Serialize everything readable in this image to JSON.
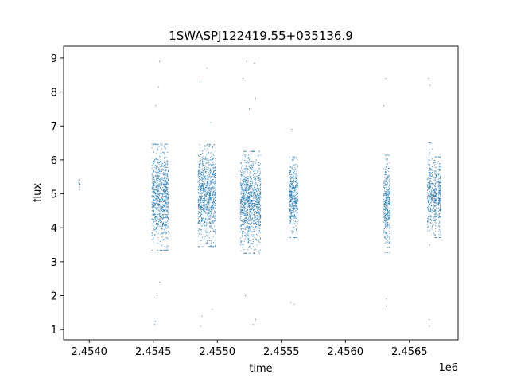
{
  "chart_data": {
    "type": "scatter",
    "title": "1SWASPJ122419.55+035136.9",
    "xlabel": "time",
    "ylabel": "flux",
    "x_offset_label": "1e6",
    "xlim": [
      2453800,
      2456880
    ],
    "ylim": [
      0.7,
      9.35
    ],
    "x_ticks": [
      2454000,
      2454500,
      2455000,
      2455500,
      2456000,
      2456500
    ],
    "x_tick_labels": [
      "2.4540",
      "2.4545",
      "2.4550",
      "2.4555",
      "2.4560",
      "2.4565"
    ],
    "y_ticks": [
      1,
      2,
      3,
      4,
      5,
      6,
      7,
      8,
      9
    ],
    "y_tick_labels": [
      "1",
      "2",
      "3",
      "4",
      "5",
      "6",
      "7",
      "8",
      "9"
    ],
    "grid": false,
    "marker_color": "#1f77b4",
    "series": [
      {
        "clusters": [
          {
            "x_start": 2453918,
            "x_end": 2453922,
            "y_center": 5.35,
            "y_spread": 0.25,
            "count": 8
          },
          {
            "x_start": 2454490,
            "x_end": 2454620,
            "y_center": 4.9,
            "y_spread": 1.25,
            "count": 900
          },
          {
            "x_start": 2454850,
            "x_end": 2454990,
            "y_center": 4.95,
            "y_spread": 1.2,
            "count": 950
          },
          {
            "x_start": 2455180,
            "x_end": 2455340,
            "y_center": 4.75,
            "y_spread": 1.2,
            "count": 1100
          },
          {
            "x_start": 2455560,
            "x_end": 2455630,
            "y_center": 4.9,
            "y_spread": 0.95,
            "count": 450
          },
          {
            "x_start": 2456300,
            "x_end": 2456350,
            "y_center": 4.7,
            "y_spread": 1.15,
            "count": 380
          },
          {
            "x_start": 2456640,
            "x_end": 2456680,
            "y_center": 5.0,
            "y_spread": 1.2,
            "count": 220
          },
          {
            "x_start": 2456690,
            "x_end": 2456712,
            "y_center": 4.9,
            "y_spread": 0.95,
            "count": 170
          },
          {
            "x_start": 2456725,
            "x_end": 2456745,
            "y_center": 4.9,
            "y_spread": 0.95,
            "count": 170
          }
        ],
        "outliers": [
          {
            "x": 2454548,
            "y": 8.9
          },
          {
            "x": 2454540,
            "y": 8.15
          },
          {
            "x": 2454520,
            "y": 7.6
          },
          {
            "x": 2454512,
            "y": 1.15
          },
          {
            "x": 2454515,
            "y": 1.25
          },
          {
            "x": 2454530,
            "y": 2.0
          },
          {
            "x": 2454550,
            "y": 2.4
          },
          {
            "x": 2454865,
            "y": 8.3
          },
          {
            "x": 2454920,
            "y": 8.7
          },
          {
            "x": 2454950,
            "y": 7.1
          },
          {
            "x": 2454870,
            "y": 1.1
          },
          {
            "x": 2454880,
            "y": 1.4
          },
          {
            "x": 2454960,
            "y": 1.6
          },
          {
            "x": 2455200,
            "y": 8.4
          },
          {
            "x": 2455230,
            "y": 8.9
          },
          {
            "x": 2455290,
            "y": 8.85
          },
          {
            "x": 2455300,
            "y": 7.8
          },
          {
            "x": 2455250,
            "y": 7.5
          },
          {
            "x": 2455280,
            "y": 1.15
          },
          {
            "x": 2455300,
            "y": 1.3
          },
          {
            "x": 2455220,
            "y": 2.0
          },
          {
            "x": 2455582,
            "y": 6.9
          },
          {
            "x": 2455575,
            "y": 1.8
          },
          {
            "x": 2455600,
            "y": 1.75
          },
          {
            "x": 2456316,
            "y": 8.4
          },
          {
            "x": 2456300,
            "y": 7.6
          },
          {
            "x": 2456318,
            "y": 1.7
          },
          {
            "x": 2456320,
            "y": 1.9
          },
          {
            "x": 2456650,
            "y": 8.4
          },
          {
            "x": 2456660,
            "y": 8.2
          },
          {
            "x": 2456655,
            "y": 1.1
          },
          {
            "x": 2456652,
            "y": 1.3
          }
        ]
      }
    ]
  }
}
